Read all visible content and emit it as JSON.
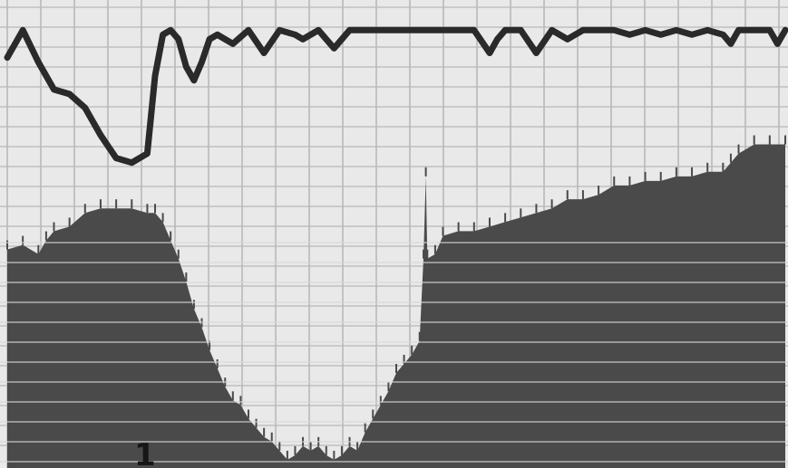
{
  "figure": {
    "panel_label": "1"
  },
  "chart_data": {
    "type": "line",
    "title": "",
    "xlabel": "",
    "ylabel": "",
    "grid": true,
    "xlim": [
      0,
      100
    ],
    "ylim": [
      0,
      100
    ],
    "paper_color": "#e9e9e9",
    "grid_color": "#b9b9b9",
    "trace_color": "#2a2a2a",
    "fill_color": "#4a4a4a",
    "series": [
      {
        "style": "trace",
        "x": [
          0,
          2,
          4,
          6,
          8,
          10,
          12,
          14,
          16,
          18,
          19,
          20,
          21,
          22,
          23,
          24,
          25,
          26,
          27,
          29,
          31,
          33,
          35,
          37,
          38,
          40,
          42,
          44,
          46,
          47,
          49,
          51,
          54,
          57,
          60,
          62,
          63,
          64,
          66,
          68,
          70,
          72,
          74,
          76,
          78,
          80,
          82,
          84,
          86,
          88,
          90,
          92,
          93,
          94,
          96,
          98,
          99,
          100
        ],
        "y": [
          89,
          95,
          88,
          82,
          81,
          78,
          72,
          67,
          66,
          68,
          85,
          94,
          95,
          93,
          87,
          84,
          88,
          93,
          94,
          92,
          95,
          90,
          95,
          94,
          93,
          95,
          91,
          95,
          95,
          95,
          95,
          95,
          95,
          95,
          95,
          90,
          93,
          95,
          95,
          90,
          95,
          93,
          95,
          95,
          95,
          94,
          95,
          94,
          95,
          94,
          95,
          94,
          92,
          95,
          95,
          95,
          92,
          95
        ]
      },
      {
        "style": "filled",
        "x": [
          0,
          2,
          4,
          5,
          6,
          8,
          10,
          12,
          14,
          16,
          18,
          19,
          20,
          21,
          22,
          23,
          24,
          25,
          26,
          27,
          28,
          29,
          30,
          31,
          32,
          33,
          34,
          35,
          36,
          37,
          38,
          39,
          40,
          41,
          42,
          43,
          44,
          45,
          46,
          47,
          48,
          49,
          50,
          51,
          52,
          53,
          53.5,
          53.8,
          54,
          55,
          56,
          58,
          60,
          62,
          64,
          66,
          68,
          70,
          72,
          74,
          76,
          78,
          80,
          82,
          84,
          86,
          88,
          90,
          92,
          93,
          94,
          96,
          98,
          100
        ],
        "y": [
          47,
          48,
          46,
          49,
          51,
          52,
          55,
          56,
          56,
          56,
          55,
          55,
          53,
          49,
          45,
          40,
          34,
          30,
          25,
          21,
          17,
          14,
          13,
          10,
          8,
          6,
          5,
          3,
          1,
          2,
          4,
          3,
          4,
          2,
          1,
          2,
          4,
          3,
          7,
          10,
          13,
          16,
          20,
          22,
          24,
          27,
          45,
          63,
          45,
          46,
          50,
          51,
          51,
          52,
          53,
          54,
          55,
          56,
          58,
          58,
          59,
          61,
          61,
          62,
          62,
          63,
          63,
          64,
          64,
          66,
          68,
          70,
          70,
          70
        ]
      }
    ]
  }
}
